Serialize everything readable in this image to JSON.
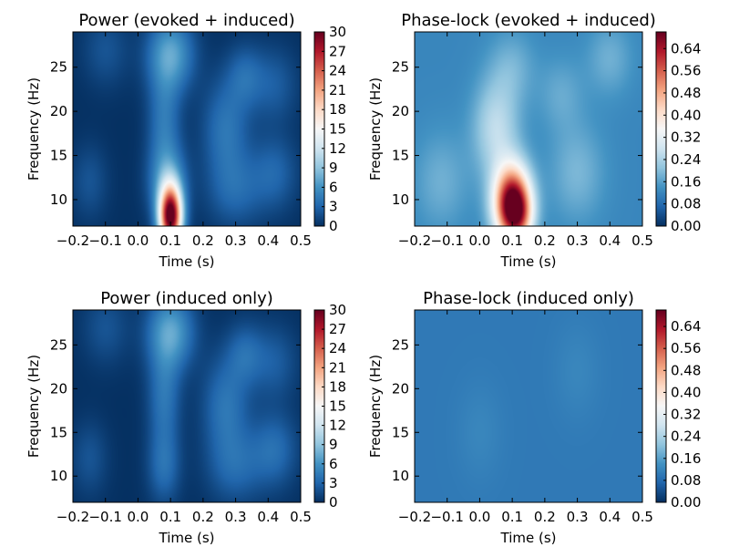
{
  "chart_data": [
    {
      "type": "heatmap",
      "title": "Power (evoked + induced)",
      "xlabel": "Time (s)",
      "ylabel": "Frequency (Hz)",
      "xlim": [
        -0.2,
        0.5
      ],
      "ylim": [
        7,
        29
      ],
      "x_ticks": [
        "−0.2",
        "−0.1",
        "0.0",
        "0.1",
        "0.2",
        "0.3",
        "0.4",
        "0.5"
      ],
      "y_ticks": [
        "10",
        "15",
        "20",
        "25"
      ],
      "colorbar": {
        "range": [
          0,
          30
        ],
        "ticks": [
          "0",
          "3",
          "6",
          "9",
          "12",
          "15",
          "18",
          "21",
          "24",
          "27",
          "30"
        ]
      },
      "colormap": "RdBu_r",
      "blobs": [
        {
          "t": 0.1,
          "f": 8.0,
          "sigma_t": 0.025,
          "sigma_f": 2.5,
          "value": 30
        },
        {
          "t": 0.09,
          "f": 12.0,
          "sigma_t": 0.04,
          "sigma_f": 3.0,
          "value": 6
        },
        {
          "t": 0.1,
          "f": 26.5,
          "sigma_t": 0.05,
          "sigma_f": 3.0,
          "value": 7
        },
        {
          "t": 0.08,
          "f": 19.0,
          "sigma_t": 0.035,
          "sigma_f": 4.0,
          "value": 4
        },
        {
          "t": 0.27,
          "f": 18.0,
          "sigma_t": 0.05,
          "sigma_f": 4.0,
          "value": 4
        },
        {
          "t": 0.33,
          "f": 24.0,
          "sigma_t": 0.04,
          "sigma_f": 2.5,
          "value": 3
        },
        {
          "t": 0.3,
          "f": 11.0,
          "sigma_t": 0.06,
          "sigma_f": 3.0,
          "value": 3
        },
        {
          "t": 0.42,
          "f": 13.0,
          "sigma_t": 0.05,
          "sigma_f": 3.0,
          "value": 3
        },
        {
          "t": 0.42,
          "f": 23.0,
          "sigma_t": 0.05,
          "sigma_f": 3.0,
          "value": 2.5
        },
        {
          "t": -0.15,
          "f": 12.0,
          "sigma_t": 0.04,
          "sigma_f": 3.0,
          "value": 2
        },
        {
          "t": -0.1,
          "f": 27.0,
          "sigma_t": 0.05,
          "sigma_f": 3.0,
          "value": 2
        }
      ]
    },
    {
      "type": "heatmap",
      "title": "Phase-lock (evoked + induced)",
      "xlabel": "Time (s)",
      "ylabel": "Frequency (Hz)",
      "xlim": [
        -0.2,
        0.5
      ],
      "ylim": [
        7,
        29
      ],
      "x_ticks": [
        "−0.2",
        "−0.1",
        "0.0",
        "0.1",
        "0.2",
        "0.3",
        "0.4",
        "0.5"
      ],
      "y_ticks": [
        "10",
        "15",
        "20",
        "25"
      ],
      "colorbar": {
        "range": [
          0,
          0.7
        ],
        "ticks": [
          "0.00",
          "0.08",
          "0.16",
          "0.24",
          "0.32",
          "0.40",
          "0.48",
          "0.56",
          "0.64"
        ]
      },
      "colormap": "RdBu_r",
      "blobs": [
        {
          "t": 0.1,
          "f": 9.5,
          "sigma_t": 0.04,
          "sigma_f": 3.0,
          "value": 0.6
        },
        {
          "t": 0.12,
          "f": 8.0,
          "sigma_t": 0.03,
          "sigma_f": 2.0,
          "value": 0.15
        },
        {
          "t": 0.05,
          "f": 18.0,
          "sigma_t": 0.05,
          "sigma_f": 4.0,
          "value": 0.14
        },
        {
          "t": 0.1,
          "f": 25.0,
          "sigma_t": 0.05,
          "sigma_f": 3.0,
          "value": 0.06
        },
        {
          "t": -0.12,
          "f": 12.0,
          "sigma_t": 0.06,
          "sigma_f": 4.0,
          "value": 0.06
        },
        {
          "t": 0.3,
          "f": 13.0,
          "sigma_t": 0.06,
          "sigma_f": 4.0,
          "value": 0.07
        },
        {
          "t": 0.4,
          "f": 26.0,
          "sigma_t": 0.05,
          "sigma_f": 3.0,
          "value": 0.06
        },
        {
          "t": 0.25,
          "f": 22.0,
          "sigma_t": 0.05,
          "sigma_f": 3.0,
          "value": 0.05
        }
      ],
      "base_value": 0.12
    },
    {
      "type": "heatmap",
      "title": "Power (induced only)",
      "xlabel": "Time (s)",
      "ylabel": "Frequency (Hz)",
      "xlim": [
        -0.2,
        0.5
      ],
      "ylim": [
        7,
        29
      ],
      "x_ticks": [
        "−0.2",
        "−0.1",
        "0.0",
        "0.1",
        "0.2",
        "0.3",
        "0.4",
        "0.5"
      ],
      "y_ticks": [
        "10",
        "15",
        "20",
        "25"
      ],
      "colorbar": {
        "range": [
          0,
          30
        ],
        "ticks": [
          "0",
          "3",
          "6",
          "9",
          "12",
          "15",
          "18",
          "21",
          "24",
          "27",
          "30"
        ]
      },
      "colormap": "RdBu_r",
      "blobs": [
        {
          "t": 0.1,
          "f": 26.5,
          "sigma_t": 0.05,
          "sigma_f": 3.0,
          "value": 7
        },
        {
          "t": 0.08,
          "f": 19.0,
          "sigma_t": 0.035,
          "sigma_f": 4.0,
          "value": 4
        },
        {
          "t": 0.08,
          "f": 11.0,
          "sigma_t": 0.035,
          "sigma_f": 3.0,
          "value": 3.5
        },
        {
          "t": 0.27,
          "f": 18.0,
          "sigma_t": 0.05,
          "sigma_f": 4.0,
          "value": 4
        },
        {
          "t": 0.33,
          "f": 24.0,
          "sigma_t": 0.04,
          "sigma_f": 2.5,
          "value": 3
        },
        {
          "t": 0.3,
          "f": 11.0,
          "sigma_t": 0.06,
          "sigma_f": 3.0,
          "value": 3
        },
        {
          "t": 0.42,
          "f": 13.0,
          "sigma_t": 0.05,
          "sigma_f": 3.0,
          "value": 3.5
        },
        {
          "t": 0.42,
          "f": 23.0,
          "sigma_t": 0.05,
          "sigma_f": 3.0,
          "value": 2.5
        },
        {
          "t": -0.15,
          "f": 12.0,
          "sigma_t": 0.04,
          "sigma_f": 3.0,
          "value": 2
        },
        {
          "t": -0.1,
          "f": 27.0,
          "sigma_t": 0.05,
          "sigma_f": 3.0,
          "value": 2
        }
      ]
    },
    {
      "type": "heatmap",
      "title": "Phase-lock (induced only)",
      "xlabel": "Time (s)",
      "ylabel": "Frequency (Hz)",
      "xlim": [
        -0.2,
        0.5
      ],
      "ylim": [
        7,
        29
      ],
      "x_ticks": [
        "−0.2",
        "−0.1",
        "0.0",
        "0.1",
        "0.2",
        "0.3",
        "0.4",
        "0.5"
      ],
      "y_ticks": [
        "10",
        "15",
        "20",
        "25"
      ],
      "colorbar": {
        "range": [
          0,
          0.7
        ],
        "ticks": [
          "0.00",
          "0.08",
          "0.16",
          "0.24",
          "0.32",
          "0.40",
          "0.48",
          "0.56",
          "0.64"
        ]
      },
      "colormap": "RdBu_r",
      "blobs": [
        {
          "t": 0.0,
          "f": 15.0,
          "sigma_t": 0.05,
          "sigma_f": 4.0,
          "value": 0.02
        },
        {
          "t": 0.3,
          "f": 22.0,
          "sigma_t": 0.05,
          "sigma_f": 4.0,
          "value": 0.02
        }
      ],
      "base_value": 0.1
    }
  ]
}
